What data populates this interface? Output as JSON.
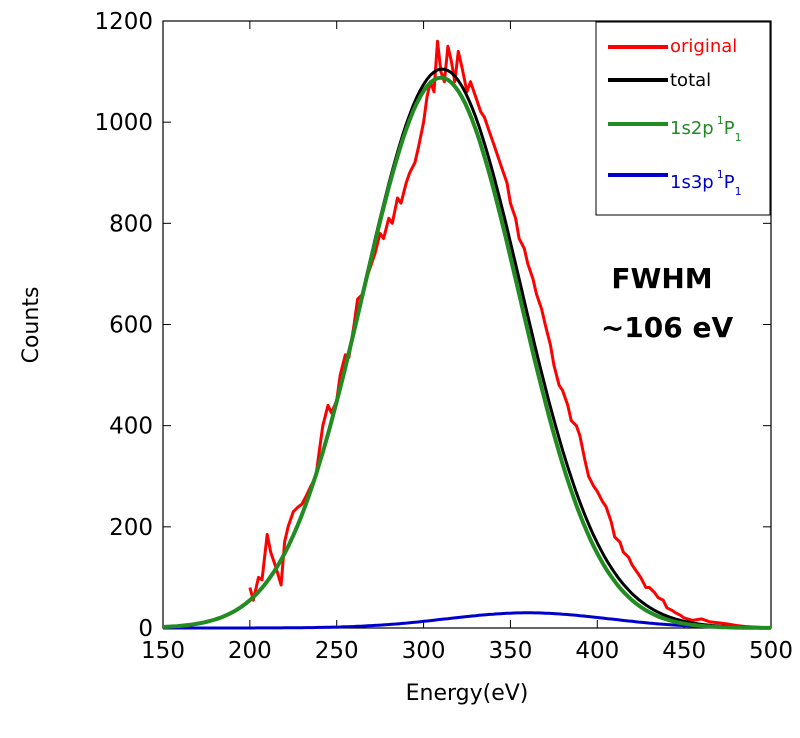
{
  "chart_data": {
    "type": "line",
    "xlabel": "Energy(eV)",
    "ylabel": "Counts",
    "xlim": [
      150,
      500
    ],
    "ylim": [
      0,
      1200
    ],
    "xticks": [
      "150",
      "200",
      "250",
      "300",
      "350",
      "400",
      "450",
      "500"
    ],
    "yticks": [
      "0",
      "200",
      "400",
      "600",
      "800",
      "1000",
      "1200"
    ],
    "grid": false,
    "legend_position": "top-right",
    "annotation": {
      "line1": "FWHM",
      "line2": "~106 eV"
    },
    "series": [
      {
        "name": "original",
        "color": "#ff0000",
        "x": [
          200,
          202,
          205,
          207,
          210,
          212,
          215,
          218,
          220,
          222,
          225,
          228,
          230,
          233,
          235,
          238,
          240,
          242,
          245,
          247,
          250,
          252,
          255,
          257,
          260,
          262,
          265,
          268,
          270,
          272,
          275,
          277,
          280,
          282,
          285,
          287,
          290,
          292,
          295,
          297,
          300,
          302,
          304,
          306,
          308,
          310,
          312,
          314,
          316,
          318,
          320,
          322,
          325,
          327,
          330,
          333,
          335,
          337,
          340,
          343,
          345,
          348,
          350,
          353,
          355,
          358,
          360,
          363,
          365,
          368,
          370,
          373,
          375,
          378,
          380,
          383,
          385,
          388,
          390,
          393,
          395,
          398,
          400,
          403,
          405,
          408,
          410,
          413,
          415,
          418,
          420,
          423,
          425,
          428,
          430,
          433,
          435,
          438,
          440,
          443,
          445,
          448,
          450,
          455,
          460,
          465,
          470,
          475,
          480,
          485,
          490,
          495,
          500
        ],
        "values": [
          80,
          55,
          100,
          95,
          185,
          150,
          120,
          85,
          170,
          200,
          230,
          240,
          245,
          265,
          280,
          300,
          350,
          400,
          440,
          425,
          450,
          500,
          540,
          535,
          600,
          650,
          660,
          700,
          720,
          740,
          780,
          770,
          810,
          800,
          850,
          840,
          880,
          900,
          920,
          950,
          1000,
          1050,
          1080,
          1060,
          1160,
          1100,
          1080,
          1150,
          1120,
          1080,
          1140,
          1110,
          1060,
          1080,
          1050,
          1020,
          1010,
          990,
          960,
          930,
          910,
          880,
          840,
          810,
          770,
          750,
          720,
          690,
          660,
          630,
          600,
          560,
          520,
          480,
          470,
          440,
          410,
          400,
          380,
          330,
          300,
          280,
          270,
          250,
          240,
          210,
          180,
          170,
          150,
          140,
          125,
          110,
          100,
          80,
          80,
          70,
          60,
          55,
          40,
          35,
          30,
          25,
          20,
          15,
          18,
          12,
          10,
          8,
          5,
          3,
          2,
          1,
          0
        ]
      },
      {
        "name": "total",
        "color": "#000000",
        "x": [],
        "values": [],
        "model": {
          "components": [
            "1s2p",
            "1s3p"
          ]
        }
      },
      {
        "name": "1s2p 1P1",
        "color": "#228b22",
        "label": {
          "main": "1s2p",
          "sup": "1",
          "letter": "P",
          "sub": "1"
        },
        "model": {
          "shape": "gaussian",
          "amplitude": 1088,
          "center": 310,
          "fwhm": 106
        }
      },
      {
        "name": "1s3p 1P1",
        "color": "#0000cc",
        "label": {
          "main": "1s3p",
          "sup": "1",
          "letter": "P",
          "sub": "1"
        },
        "model": {
          "shape": "gaussian",
          "amplitude": 30,
          "center": 360,
          "fwhm": 110
        }
      }
    ]
  }
}
